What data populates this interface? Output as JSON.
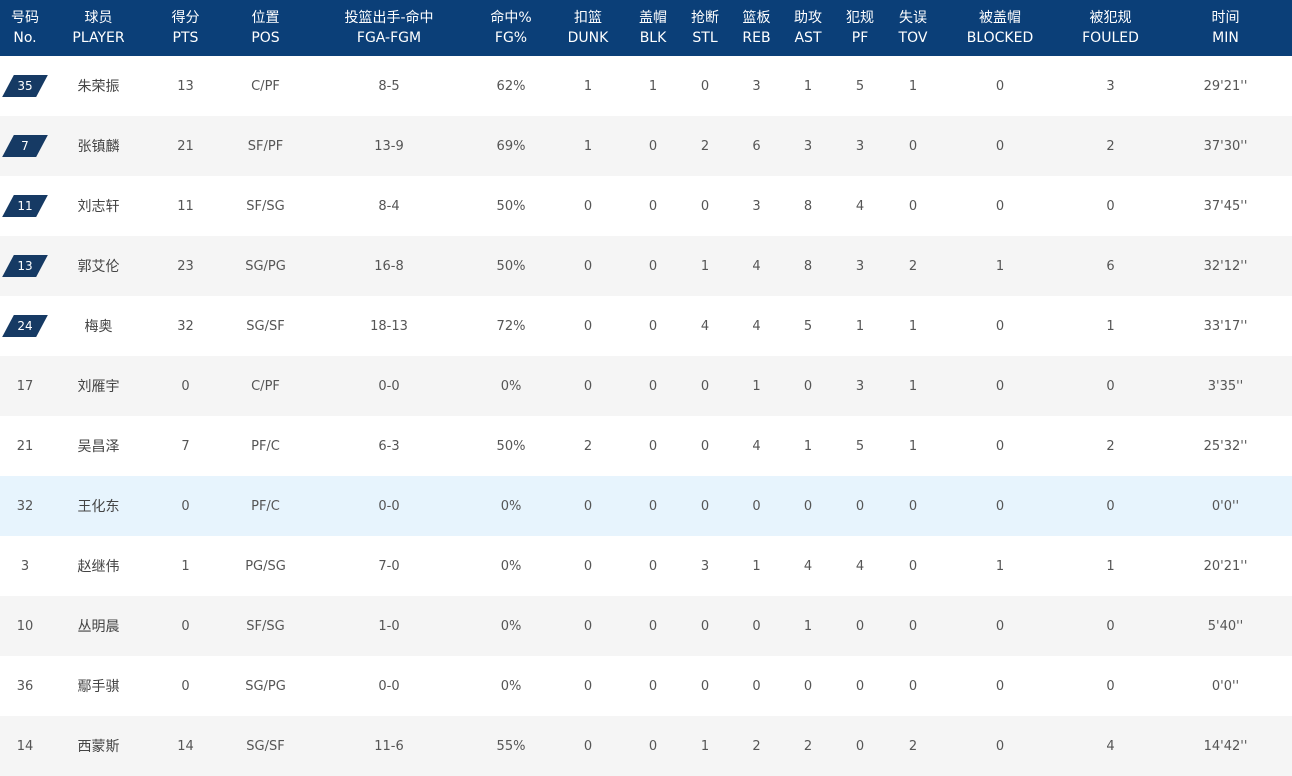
{
  "columns": [
    {
      "zh": "号码",
      "en": "No."
    },
    {
      "zh": "球员",
      "en": "PLAYER"
    },
    {
      "zh": "得分",
      "en": "PTS"
    },
    {
      "zh": "位置",
      "en": "POS"
    },
    {
      "zh": "投篮出手-命中",
      "en": "FGA-FGM"
    },
    {
      "zh": "命中%",
      "en": "FG%"
    },
    {
      "zh": "扣篮",
      "en": "DUNK"
    },
    {
      "zh": "盖帽",
      "en": "BLK"
    },
    {
      "zh": "抢断",
      "en": "STL"
    },
    {
      "zh": "篮板",
      "en": "REB"
    },
    {
      "zh": "助攻",
      "en": "AST"
    },
    {
      "zh": "犯规",
      "en": "PF"
    },
    {
      "zh": "失误",
      "en": "TOV"
    },
    {
      "zh": "被盖帽",
      "en": "BLOCKED"
    },
    {
      "zh": "被犯规",
      "en": "FOULED"
    },
    {
      "zh": "时间",
      "en": "MIN"
    }
  ],
  "rows": [
    {
      "no": "35",
      "starter": true,
      "player": "朱荣振",
      "pts": "13",
      "pos": "C/PF",
      "fga_fgm": "8-5",
      "fg_pct": "62%",
      "dunk": "1",
      "blk": "1",
      "stl": "0",
      "reb": "3",
      "ast": "1",
      "pf": "5",
      "tov": "1",
      "blocked": "0",
      "fouled": "3",
      "min": "29'21''"
    },
    {
      "no": "7",
      "starter": true,
      "player": "张镇麟",
      "pts": "21",
      "pos": "SF/PF",
      "fga_fgm": "13-9",
      "fg_pct": "69%",
      "dunk": "1",
      "blk": "0",
      "stl": "2",
      "reb": "6",
      "ast": "3",
      "pf": "3",
      "tov": "0",
      "blocked": "0",
      "fouled": "2",
      "min": "37'30''"
    },
    {
      "no": "11",
      "starter": true,
      "player": "刘志轩",
      "pts": "11",
      "pos": "SF/SG",
      "fga_fgm": "8-4",
      "fg_pct": "50%",
      "dunk": "0",
      "blk": "0",
      "stl": "0",
      "reb": "3",
      "ast": "8",
      "pf": "4",
      "tov": "0",
      "blocked": "0",
      "fouled": "0",
      "min": "37'45''"
    },
    {
      "no": "13",
      "starter": true,
      "player": "郭艾伦",
      "pts": "23",
      "pos": "SG/PG",
      "fga_fgm": "16-8",
      "fg_pct": "50%",
      "dunk": "0",
      "blk": "0",
      "stl": "1",
      "reb": "4",
      "ast": "8",
      "pf": "3",
      "tov": "2",
      "blocked": "1",
      "fouled": "6",
      "min": "32'12''"
    },
    {
      "no": "24",
      "starter": true,
      "player": "梅奥",
      "pts": "32",
      "pos": "SG/SF",
      "fga_fgm": "18-13",
      "fg_pct": "72%",
      "dunk": "0",
      "blk": "0",
      "stl": "4",
      "reb": "4",
      "ast": "5",
      "pf": "1",
      "tov": "1",
      "blocked": "0",
      "fouled": "1",
      "min": "33'17''"
    },
    {
      "no": "17",
      "starter": false,
      "player": "刘雁宇",
      "pts": "0",
      "pos": "C/PF",
      "fga_fgm": "0-0",
      "fg_pct": "0%",
      "dunk": "0",
      "blk": "0",
      "stl": "0",
      "reb": "1",
      "ast": "0",
      "pf": "3",
      "tov": "1",
      "blocked": "0",
      "fouled": "0",
      "min": "3'35''"
    },
    {
      "no": "21",
      "starter": false,
      "player": "吴昌泽",
      "pts": "7",
      "pos": "PF/C",
      "fga_fgm": "6-3",
      "fg_pct": "50%",
      "dunk": "2",
      "blk": "0",
      "stl": "0",
      "reb": "4",
      "ast": "1",
      "pf": "5",
      "tov": "1",
      "blocked": "0",
      "fouled": "2",
      "min": "25'32''"
    },
    {
      "no": "32",
      "starter": false,
      "player": "王化东",
      "pts": "0",
      "pos": "PF/C",
      "fga_fgm": "0-0",
      "fg_pct": "0%",
      "dunk": "0",
      "blk": "0",
      "stl": "0",
      "reb": "0",
      "ast": "0",
      "pf": "0",
      "tov": "0",
      "blocked": "0",
      "fouled": "0",
      "min": "0'0''",
      "highlight": true
    },
    {
      "no": "3",
      "starter": false,
      "player": "赵继伟",
      "pts": "1",
      "pos": "PG/SG",
      "fga_fgm": "7-0",
      "fg_pct": "0%",
      "dunk": "0",
      "blk": "0",
      "stl": "3",
      "reb": "1",
      "ast": "4",
      "pf": "4",
      "tov": "0",
      "blocked": "1",
      "fouled": "1",
      "min": "20'21''"
    },
    {
      "no": "10",
      "starter": false,
      "player": "丛明晨",
      "pts": "0",
      "pos": "SF/SG",
      "fga_fgm": "1-0",
      "fg_pct": "0%",
      "dunk": "0",
      "blk": "0",
      "stl": "0",
      "reb": "0",
      "ast": "1",
      "pf": "0",
      "tov": "0",
      "blocked": "0",
      "fouled": "0",
      "min": "5'40''"
    },
    {
      "no": "36",
      "starter": false,
      "player": "鄢手骐",
      "pts": "0",
      "pos": "SG/PG",
      "fga_fgm": "0-0",
      "fg_pct": "0%",
      "dunk": "0",
      "blk": "0",
      "stl": "0",
      "reb": "0",
      "ast": "0",
      "pf": "0",
      "tov": "0",
      "blocked": "0",
      "fouled": "0",
      "min": "0'0''"
    },
    {
      "no": "14",
      "starter": false,
      "player": "西蒙斯",
      "pts": "14",
      "pos": "SG/SF",
      "fga_fgm": "11-6",
      "fg_pct": "55%",
      "dunk": "0",
      "blk": "0",
      "stl": "1",
      "reb": "2",
      "ast": "2",
      "pf": "0",
      "tov": "2",
      "blocked": "0",
      "fouled": "4",
      "min": "14'42''"
    }
  ],
  "colors": {
    "header_bg": "#0b3f78",
    "starter_badge_bg": "#163a64",
    "row_alt_bg": "#f5f5f5",
    "row_highlight_bg": "#e7f4fd"
  }
}
